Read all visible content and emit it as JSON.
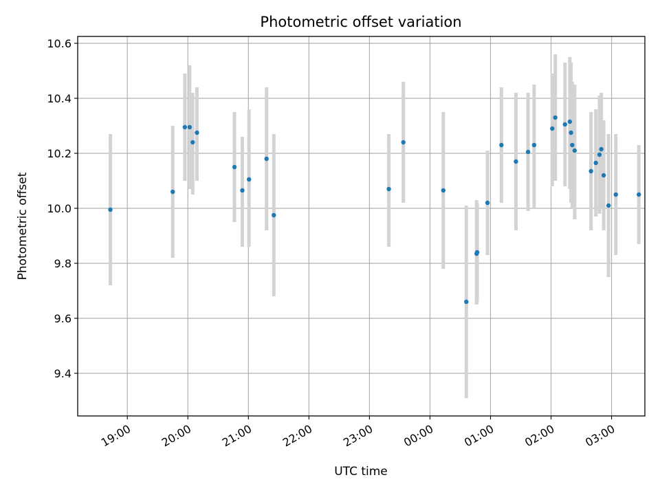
{
  "chart_data": {
    "type": "scatter",
    "title": "Photometric offset variation",
    "xlabel": "UTC time",
    "ylabel": "Photometric offset",
    "x_unit": "hours from 18:00 UTC on a ticked clock axis (labels shown as HH:00)",
    "xlim": [
      18.18,
      27.55
    ],
    "ylim": [
      9.245,
      10.625
    ],
    "x_ticks": [
      {
        "value": 19,
        "label": "19:00"
      },
      {
        "value": 20,
        "label": "20:00"
      },
      {
        "value": 21,
        "label": "21:00"
      },
      {
        "value": 22,
        "label": "22:00"
      },
      {
        "value": 23,
        "label": "23:00"
      },
      {
        "value": 24,
        "label": "00:00"
      },
      {
        "value": 25,
        "label": "01:00"
      },
      {
        "value": 26,
        "label": "02:00"
      },
      {
        "value": 27,
        "label": "03:00"
      }
    ],
    "y_ticks": [
      {
        "value": 9.4,
        "label": "9.4"
      },
      {
        "value": 9.6,
        "label": "9.6"
      },
      {
        "value": 9.8,
        "label": "9.8"
      },
      {
        "value": 10.0,
        "label": "10.0"
      },
      {
        "value": 10.2,
        "label": "10.2"
      },
      {
        "value": 10.4,
        "label": "10.4"
      },
      {
        "value": 10.6,
        "label": "10.6"
      }
    ],
    "grid": true,
    "colors": {
      "point": "#1f77b4",
      "errorbar": "#d3d3d3",
      "grid": "#b0b0b0"
    },
    "points": [
      {
        "x": 18.72,
        "y": 9.995,
        "ylo": 9.72,
        "yhi": 10.27
      },
      {
        "x": 19.75,
        "y": 10.06,
        "ylo": 9.82,
        "yhi": 10.3
      },
      {
        "x": 19.95,
        "y": 10.295,
        "ylo": 10.1,
        "yhi": 10.49
      },
      {
        "x": 20.03,
        "y": 10.295,
        "ylo": 10.07,
        "yhi": 10.52
      },
      {
        "x": 20.08,
        "y": 10.24,
        "ylo": 10.05,
        "yhi": 10.42
      },
      {
        "x": 20.15,
        "y": 10.275,
        "ylo": 10.1,
        "yhi": 10.44
      },
      {
        "x": 20.77,
        "y": 10.15,
        "ylo": 9.95,
        "yhi": 10.35
      },
      {
        "x": 20.9,
        "y": 10.065,
        "ylo": 9.86,
        "yhi": 10.26
      },
      {
        "x": 21.01,
        "y": 10.105,
        "ylo": 9.86,
        "yhi": 10.36
      },
      {
        "x": 21.3,
        "y": 10.18,
        "ylo": 9.92,
        "yhi": 10.44
      },
      {
        "x": 21.42,
        "y": 9.975,
        "ylo": 9.68,
        "yhi": 10.27
      },
      {
        "x": 23.32,
        "y": 10.07,
        "ylo": 9.86,
        "yhi": 10.27
      },
      {
        "x": 23.56,
        "y": 10.24,
        "ylo": 10.02,
        "yhi": 10.46
      },
      {
        "x": 24.22,
        "y": 10.065,
        "ylo": 9.78,
        "yhi": 10.35
      },
      {
        "x": 24.6,
        "y": 9.66,
        "ylo": 9.31,
        "yhi": 10.01
      },
      {
        "x": 24.77,
        "y": 9.835,
        "ylo": 9.65,
        "yhi": 10.03
      },
      {
        "x": 24.78,
        "y": 9.84,
        "ylo": 9.66,
        "yhi": 10.02
      },
      {
        "x": 24.95,
        "y": 10.02,
        "ylo": 9.83,
        "yhi": 10.21
      },
      {
        "x": 25.18,
        "y": 10.23,
        "ylo": 10.02,
        "yhi": 10.44
      },
      {
        "x": 25.42,
        "y": 10.17,
        "ylo": 9.92,
        "yhi": 10.42
      },
      {
        "x": 25.62,
        "y": 10.205,
        "ylo": 9.99,
        "yhi": 10.42
      },
      {
        "x": 25.72,
        "y": 10.23,
        "ylo": 10.0,
        "yhi": 10.45
      },
      {
        "x": 26.02,
        "y": 10.29,
        "ylo": 10.08,
        "yhi": 10.49
      },
      {
        "x": 26.07,
        "y": 10.33,
        "ylo": 10.1,
        "yhi": 10.56
      },
      {
        "x": 26.23,
        "y": 10.305,
        "ylo": 10.08,
        "yhi": 10.53
      },
      {
        "x": 26.31,
        "y": 10.315,
        "ylo": 10.07,
        "yhi": 10.55
      },
      {
        "x": 26.33,
        "y": 10.275,
        "ylo": 10.02,
        "yhi": 10.53
      },
      {
        "x": 26.35,
        "y": 10.23,
        "ylo": 10.0,
        "yhi": 10.46
      },
      {
        "x": 26.39,
        "y": 10.21,
        "ylo": 9.96,
        "yhi": 10.45
      },
      {
        "x": 26.66,
        "y": 10.135,
        "ylo": 9.92,
        "yhi": 10.35
      },
      {
        "x": 26.74,
        "y": 10.165,
        "ylo": 9.97,
        "yhi": 10.36
      },
      {
        "x": 26.8,
        "y": 10.195,
        "ylo": 9.98,
        "yhi": 10.41
      },
      {
        "x": 26.83,
        "y": 10.215,
        "ylo": 10.0,
        "yhi": 10.42
      },
      {
        "x": 26.87,
        "y": 10.12,
        "ylo": 9.92,
        "yhi": 10.32
      },
      {
        "x": 26.95,
        "y": 10.01,
        "ylo": 9.75,
        "yhi": 10.27
      },
      {
        "x": 27.07,
        "y": 10.05,
        "ylo": 9.83,
        "yhi": 10.27
      },
      {
        "x": 27.45,
        "y": 10.05,
        "ylo": 9.87,
        "yhi": 10.23
      }
    ]
  }
}
